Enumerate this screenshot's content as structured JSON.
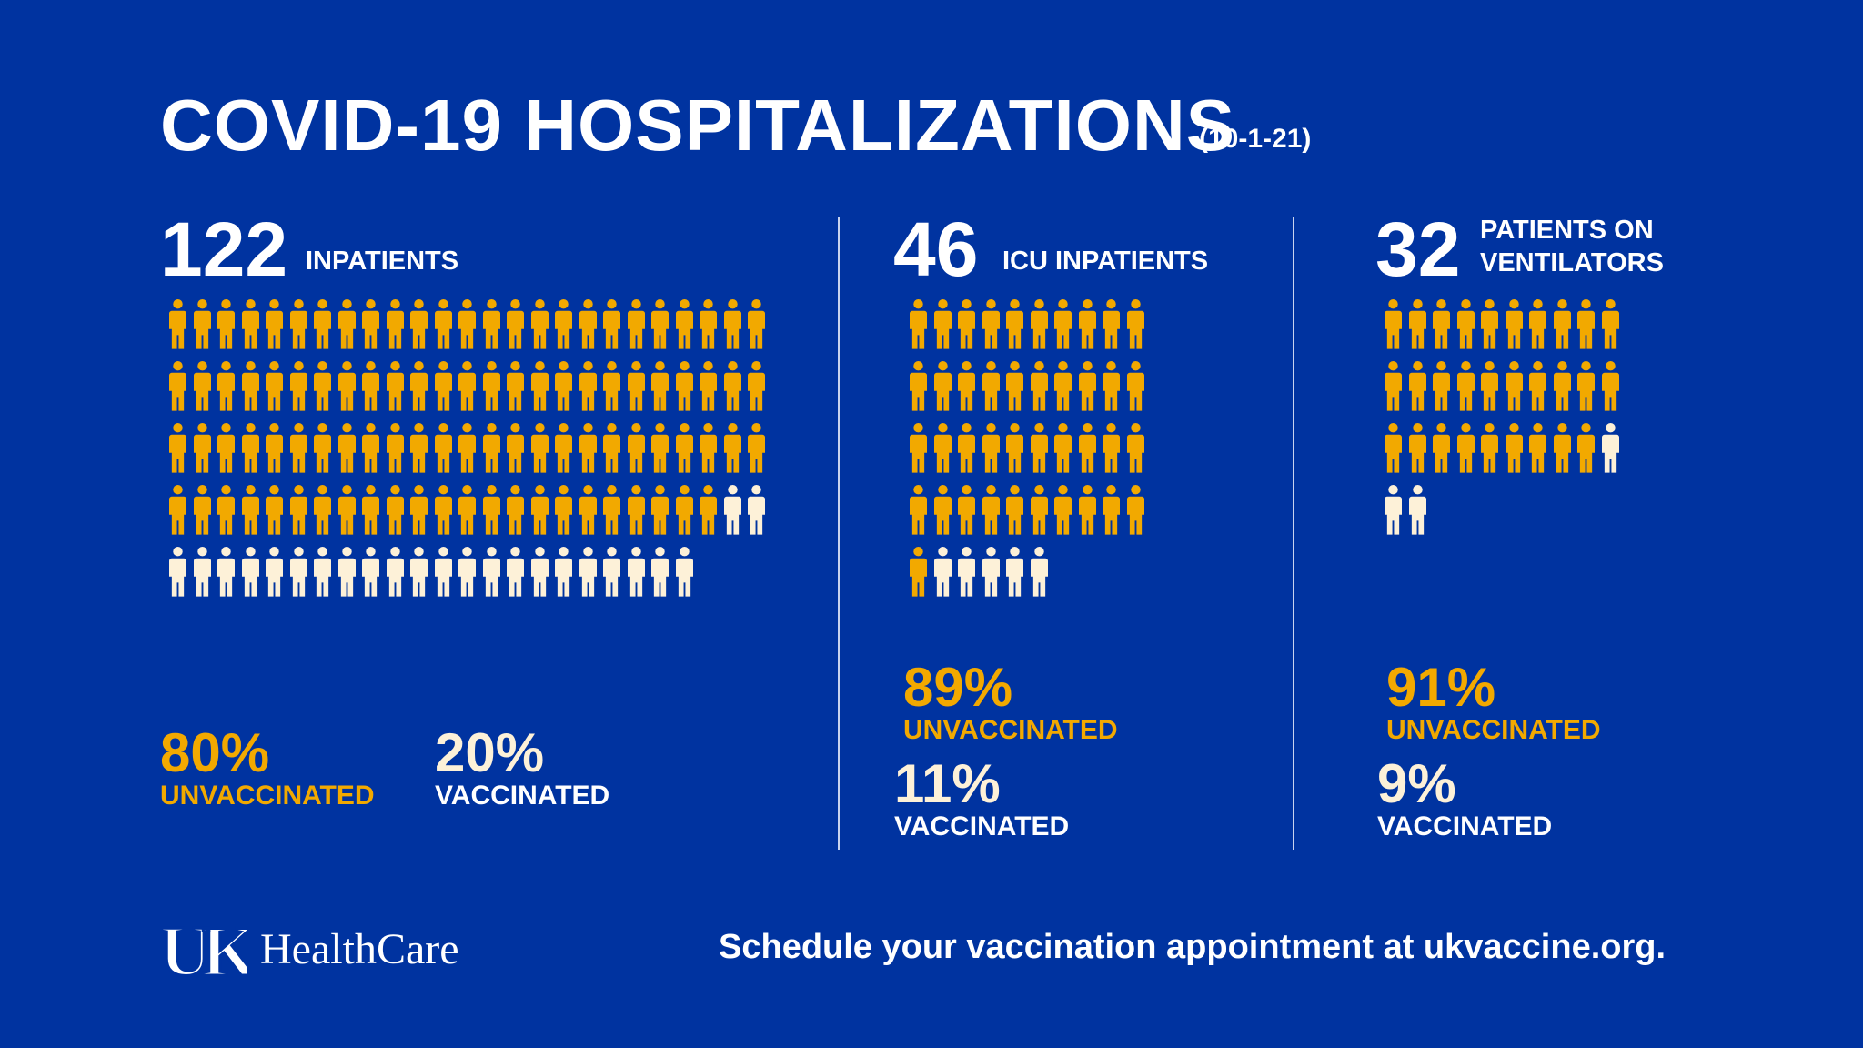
{
  "title": "COVID-19 HOSPITALIZATIONS",
  "date": "(10-1-21)",
  "colors": {
    "background": "#0033a0",
    "unvaccinated": "#f2a900",
    "vaccinated": "#fdf1d8",
    "text": "#ffffff"
  },
  "icon": "person-icon",
  "panels": [
    {
      "count": "122",
      "label": "INPATIENTS",
      "total": 122,
      "unvaccinated": 98,
      "unvaccinated_pct": "80%",
      "unvaccinated_label": "UNVACCINATED",
      "vaccinated_pct": "20%",
      "vaccinated_label": "VACCINATED"
    },
    {
      "count": "46",
      "label": "ICU INPATIENTS",
      "total": 46,
      "unvaccinated": 41,
      "unvaccinated_pct": "89%",
      "unvaccinated_label": "UNVACCINATED",
      "vaccinated_pct": "11%",
      "vaccinated_label": "VACCINATED"
    },
    {
      "count": "32",
      "label_line1": "PATIENTS ON",
      "label_line2": "VENTILATORS",
      "total": 32,
      "unvaccinated": 29,
      "unvaccinated_pct": "91%",
      "unvaccinated_label": "UNVACCINATED",
      "vaccinated_pct": "9%",
      "vaccinated_label": "VACCINATED"
    }
  ],
  "footer": {
    "logo_letters": "UK",
    "logo_text": "HealthCare",
    "cta": "Schedule your vaccination appointment at ukvaccine.org."
  }
}
